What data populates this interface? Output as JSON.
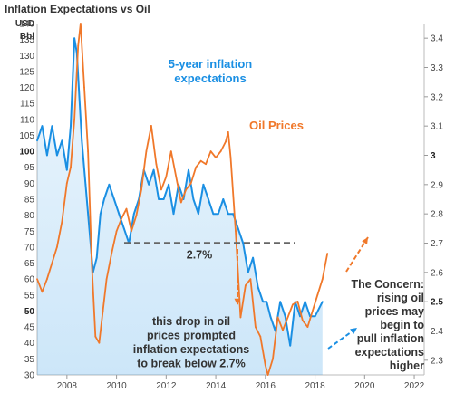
{
  "chart_data": {
    "type": "line",
    "title": "Inflation Expectations vs Oil",
    "left_axis": {
      "unit_lines": [
        "USD",
        "Bbl"
      ],
      "range": [
        30,
        140
      ],
      "ticks": [
        "140",
        "135",
        "130",
        "125",
        "120",
        "115",
        "110",
        "105",
        "100",
        "95",
        "90",
        "85",
        "80",
        "75",
        "70",
        "65",
        "60",
        "55",
        "50",
        "45",
        "40",
        "35",
        "30"
      ],
      "bold_ticks": [
        "100",
        "50"
      ]
    },
    "right_axis": {
      "range": [
        2.25,
        3.45
      ],
      "ticks": [
        "3.4",
        "3.3",
        "3.2",
        "3.1",
        "3",
        "2.9",
        "2.8",
        "2.7",
        "2.6",
        "2.5",
        "2.4",
        "2.3"
      ],
      "bold_ticks": [
        "3",
        "2.5"
      ]
    },
    "x_axis": {
      "range": [
        2006.8,
        2022.4
      ],
      "ticks": [
        "2008",
        "2010",
        "2012",
        "2014",
        "2016",
        "2018",
        "2020",
        "2022"
      ]
    },
    "grid": false,
    "series": [
      {
        "name": "5-year inflation expectations",
        "axis": "right",
        "color": "#1a8fe3",
        "x": [
          2006.8,
          2007.0,
          2007.2,
          2007.4,
          2007.6,
          2007.8,
          2008.0,
          2008.15,
          2008.3,
          2008.4,
          2008.5,
          2008.6,
          2008.75,
          2008.9,
          2009.05,
          2009.2,
          2009.35,
          2009.5,
          2009.7,
          2009.9,
          2010.1,
          2010.3,
          2010.5,
          2010.7,
          2010.9,
          2011.1,
          2011.3,
          2011.5,
          2011.7,
          2011.9,
          2012.1,
          2012.3,
          2012.5,
          2012.7,
          2012.9,
          2013.1,
          2013.3,
          2013.5,
          2013.7,
          2013.9,
          2014.1,
          2014.3,
          2014.5,
          2014.7,
          2014.9,
          2015.1,
          2015.3,
          2015.5,
          2015.7,
          2015.9,
          2016.05,
          2016.2,
          2016.4,
          2016.6,
          2016.8,
          2017.0,
          2017.2,
          2017.4,
          2017.6,
          2017.8,
          2018.0,
          2018.3
        ],
        "y": [
          3.05,
          3.1,
          3.0,
          3.1,
          3.0,
          3.05,
          2.95,
          3.1,
          3.4,
          3.35,
          3.2,
          3.05,
          2.9,
          2.75,
          2.6,
          2.65,
          2.8,
          2.85,
          2.9,
          2.85,
          2.8,
          2.75,
          2.7,
          2.8,
          2.85,
          2.95,
          2.9,
          2.95,
          2.85,
          2.85,
          2.9,
          2.8,
          2.9,
          2.85,
          2.95,
          2.85,
          2.8,
          2.9,
          2.85,
          2.8,
          2.8,
          2.85,
          2.8,
          2.8,
          2.75,
          2.7,
          2.6,
          2.65,
          2.55,
          2.5,
          2.5,
          2.45,
          2.4,
          2.5,
          2.45,
          2.35,
          2.5,
          2.45,
          2.5,
          2.45,
          2.45,
          2.5
        ]
      },
      {
        "name": "Oil Prices",
        "axis": "left",
        "color": "#f0782a",
        "x": [
          2006.8,
          2007.0,
          2007.2,
          2007.4,
          2007.6,
          2007.8,
          2008.0,
          2008.15,
          2008.3,
          2008.45,
          2008.55,
          2008.7,
          2008.85,
          2009.0,
          2009.15,
          2009.3,
          2009.45,
          2009.6,
          2009.8,
          2010.0,
          2010.2,
          2010.4,
          2010.6,
          2010.8,
          2011.0,
          2011.2,
          2011.4,
          2011.6,
          2011.8,
          2012.0,
          2012.2,
          2012.4,
          2012.6,
          2012.8,
          2013.0,
          2013.2,
          2013.4,
          2013.6,
          2013.8,
          2014.0,
          2014.2,
          2014.4,
          2014.5,
          2014.6,
          2014.8,
          2015.0,
          2015.2,
          2015.4,
          2015.6,
          2015.8,
          2016.0,
          2016.1,
          2016.3,
          2016.5,
          2016.7,
          2016.9,
          2017.1,
          2017.3,
          2017.5,
          2017.7,
          2017.9,
          2018.1,
          2018.3,
          2018.5
        ],
        "y": [
          60,
          56,
          60,
          65,
          70,
          78,
          90,
          95,
          110,
          133,
          140,
          120,
          100,
          65,
          42,
          40,
          50,
          60,
          68,
          75,
          79,
          82,
          75,
          80,
          88,
          100,
          108,
          96,
          88,
          92,
          100,
          92,
          84,
          88,
          90,
          95,
          97,
          96,
          100,
          98,
          100,
          103,
          106,
          98,
          75,
          48,
          58,
          60,
          45,
          42,
          33,
          30,
          35,
          48,
          44,
          48,
          52,
          53,
          47,
          45,
          50,
          55,
          60,
          68
        ]
      }
    ],
    "annotations": {
      "inflation_label": [
        "5-year inflation",
        "expectations"
      ],
      "oil_label": "Oil Prices",
      "threshold_value": 2.7,
      "threshold_label": "2.7%",
      "drop_note": [
        "this drop in oil",
        "prices prompted",
        "inflation expectations",
        "to break below 2.7%"
      ],
      "concern_note": [
        "The Concern:",
        "rising oil",
        "prices may",
        "begin to",
        "pull inflation",
        "expectations",
        "higher"
      ]
    }
  }
}
